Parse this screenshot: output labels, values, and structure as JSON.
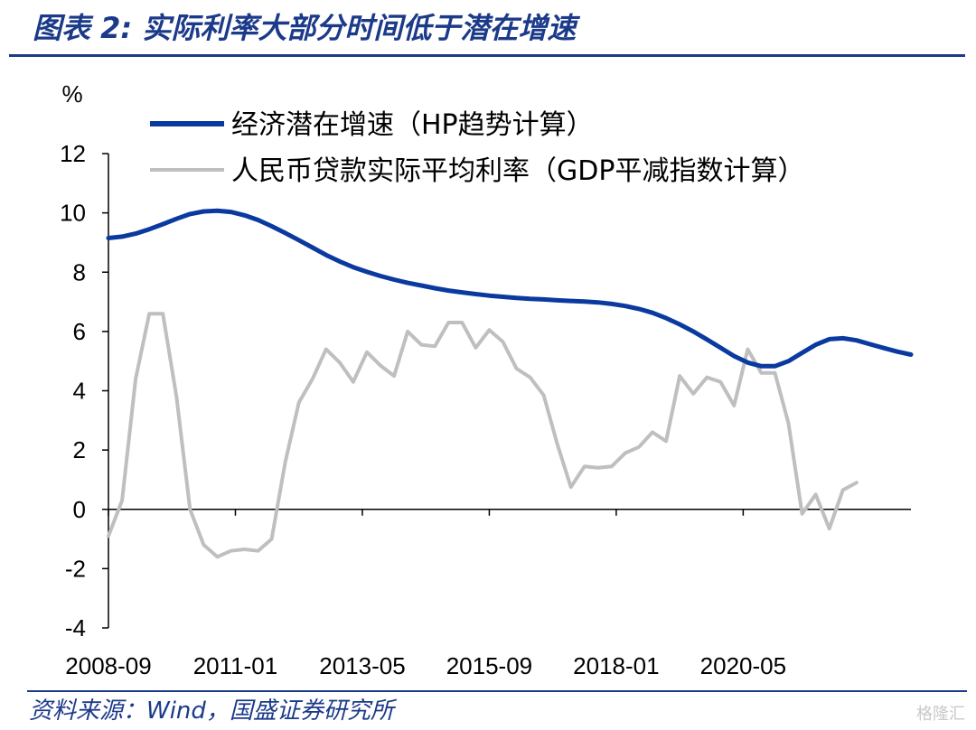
{
  "figure_title": "图表 2:  实际利率大部分时间低于潜在增速",
  "source": "资料来源：Wind，国盛证券研究所",
  "watermark": "格隆汇",
  "chart_data": {
    "type": "line",
    "yunit": "%",
    "ylim": [
      -4,
      12
    ],
    "yticks": [
      -4,
      -2,
      0,
      2,
      4,
      6,
      8,
      10,
      12
    ],
    "xtick_labels": [
      "2008-09",
      "2011-01",
      "2013-05",
      "2015-09",
      "2018-01",
      "2020-05"
    ],
    "x_start": "2008-09",
    "x_end": "2023-06",
    "legend_position": "top",
    "grid": false,
    "series": [
      {
        "name": "经济潜在增速（HP趋势计算）",
        "color": "#0a3aa0",
        "frequency": "quarterly",
        "values": [
          9.15,
          9.2,
          9.3,
          9.45,
          9.62,
          9.8,
          9.96,
          10.05,
          10.07,
          10.03,
          9.92,
          9.76,
          9.55,
          9.32,
          9.08,
          8.83,
          8.58,
          8.36,
          8.17,
          8.01,
          7.87,
          7.75,
          7.64,
          7.55,
          7.46,
          7.38,
          7.32,
          7.26,
          7.21,
          7.17,
          7.13,
          7.1,
          7.08,
          7.05,
          7.03,
          7.01,
          6.98,
          6.93,
          6.86,
          6.76,
          6.63,
          6.45,
          6.24,
          6.0,
          5.73,
          5.45,
          5.17,
          4.95,
          4.83,
          4.83,
          5.0,
          5.28,
          5.55,
          5.74,
          5.77,
          5.7,
          5.57,
          5.44,
          5.32,
          5.22
        ]
      },
      {
        "name": "人民币贷款实际平均利率（GDP平减指数计算）",
        "color": "#bfbfbf",
        "frequency": "quarterly",
        "values": [
          -0.9,
          0.3,
          4.4,
          6.6,
          6.6,
          3.8,
          0.0,
          -1.2,
          -1.6,
          -1.4,
          -1.35,
          -1.4,
          -1.0,
          1.6,
          3.6,
          4.4,
          5.4,
          4.95,
          4.3,
          5.3,
          4.85,
          4.5,
          6.0,
          5.55,
          5.5,
          6.3,
          6.3,
          5.45,
          6.05,
          5.65,
          4.75,
          4.45,
          3.85,
          2.2,
          0.75,
          1.45,
          1.4,
          1.45,
          1.9,
          2.1,
          2.6,
          2.3,
          4.5,
          3.9,
          4.45,
          4.3,
          3.5,
          5.4,
          4.6,
          4.6,
          2.9,
          -0.15,
          0.5,
          -0.65,
          0.65,
          0.9
        ]
      }
    ]
  }
}
